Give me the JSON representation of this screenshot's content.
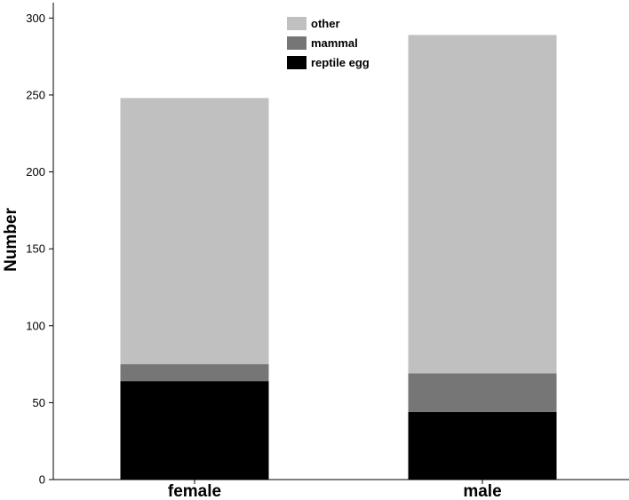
{
  "chart_data": {
    "type": "bar",
    "stacked": true,
    "categories": [
      "female",
      "male"
    ],
    "series": [
      {
        "name": "reptile egg",
        "color": "#000000",
        "values": [
          64,
          44
        ]
      },
      {
        "name": "mammal",
        "color": "#767676",
        "values": [
          11,
          25
        ]
      },
      {
        "name": "other",
        "color": "#c0c0c0",
        "values": [
          173,
          220
        ]
      }
    ],
    "legend_order": [
      "other",
      "mammal",
      "reptile egg"
    ],
    "legend_position": "top",
    "ylabel": "Number",
    "xlabel": "",
    "ylim": [
      0,
      310
    ],
    "yticks": [
      0,
      50,
      100,
      150,
      200,
      250,
      300
    ],
    "grid": false
  }
}
